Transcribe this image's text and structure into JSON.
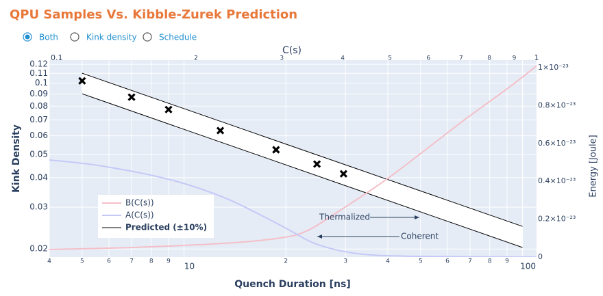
{
  "controls": {
    "options": [
      "Both",
      "Kink density",
      "Schedule"
    ],
    "selected": "Both"
  },
  "chart_data": {
    "type": "line",
    "title": "QPU Samples Vs. Kibble-Zurek Prediction",
    "xlabel": "Quench Duration [ns]",
    "ylabel": "Kink Density",
    "x2label": "C(s)",
    "y2label": "Energy [Joule]",
    "log_x": true,
    "log_y": true,
    "log_x2": true,
    "grid": true,
    "xlim": [
      4,
      110
    ],
    "ylim": [
      0.0185,
      0.125
    ],
    "x2lim": [
      0.1,
      1
    ],
    "y2lim": [
      0,
      1.04e-23
    ],
    "xticks": [
      4,
      5,
      6,
      7,
      8,
      9,
      10,
      {
        "value": 20,
        "label": "2"
      },
      {
        "value": 30,
        "label": "3"
      },
      {
        "value": 40,
        "label": "4"
      },
      {
        "value": 50,
        "label": "5"
      },
      {
        "value": 60,
        "label": "6"
      },
      {
        "value": 70,
        "label": "7"
      },
      {
        "value": 80,
        "label": "8"
      },
      {
        "value": 90,
        "label": "9"
      },
      100
    ],
    "yticks": [
      0.02,
      0.03,
      0.04,
      0.05,
      0.06,
      0.07,
      0.08,
      0.09,
      0.1,
      0.11,
      0.12
    ],
    "x2ticks": [
      0.1,
      {
        "value": 0.2,
        "label": "2"
      },
      {
        "value": 0.3,
        "label": "3"
      },
      {
        "value": 0.4,
        "label": "4"
      },
      {
        "value": 0.5,
        "label": "5"
      },
      {
        "value": 0.6,
        "label": "6"
      },
      {
        "value": 0.7,
        "label": "7"
      },
      {
        "value": 0.8,
        "label": "8"
      },
      {
        "value": 0.9,
        "label": "9"
      },
      1
    ],
    "y2ticks": [
      0,
      {
        "value": 2e-24,
        "label": "0.2×10⁻²³"
      },
      {
        "value": 4e-24,
        "label": "0.4×10⁻²³"
      },
      {
        "value": 6e-24,
        "label": "0.6×10⁻²³"
      },
      {
        "value": 8e-24,
        "label": "0.8×10⁻²³"
      },
      {
        "value": 1e-23,
        "label": "1×10⁻²³"
      }
    ],
    "series": [
      {
        "type": "scatter",
        "color": "#000000",
        "x": [
          5,
          7,
          9,
          12.8,
          18.7,
          24.7,
          29.6
        ],
        "values": [
          0.1023,
          0.0873,
          0.0774,
          0.0631,
          0.0524,
          0.0456,
          0.0415
        ]
      },
      {
        "type": "line",
        "name": "B(C(s))",
        "color": "#f4bfc8",
        "axis": "y2",
        "x": [
          0.1,
          0.15,
          0.23,
          0.3,
          0.34,
          0.4,
          0.49,
          0.59,
          0.72,
          0.88,
          1
        ],
        "values": [
          4e-25,
          5.1e-25,
          7.3e-25,
          1.02e-24,
          1.42e-24,
          2.55e-24,
          4.07e-24,
          5.64e-24,
          7.35e-24,
          8.98e-24,
          1.01e-23
        ]
      },
      {
        "type": "line",
        "name": "A(C(s))",
        "color": "#c5c9f7",
        "axis": "y2",
        "x": [
          0.1,
          0.129,
          0.178,
          0.231,
          0.3,
          0.353,
          0.429,
          0.557,
          1
        ],
        "values": [
          5.13e-24,
          4.8e-24,
          4.07e-24,
          3.09e-24,
          1.64e-24,
          6.9e-25,
          1.8e-25,
          4e-26,
          0
        ]
      },
      {
        "type": "band",
        "name": "Predicted (±10%)",
        "color": "#000000",
        "x": [
          5,
          100
        ],
        "upper": [
          0.1101,
          0.0249
        ],
        "lower": [
          0.0902,
          0.0203
        ]
      }
    ],
    "annotations": [
      "Thermalized",
      "Coherent"
    ]
  }
}
